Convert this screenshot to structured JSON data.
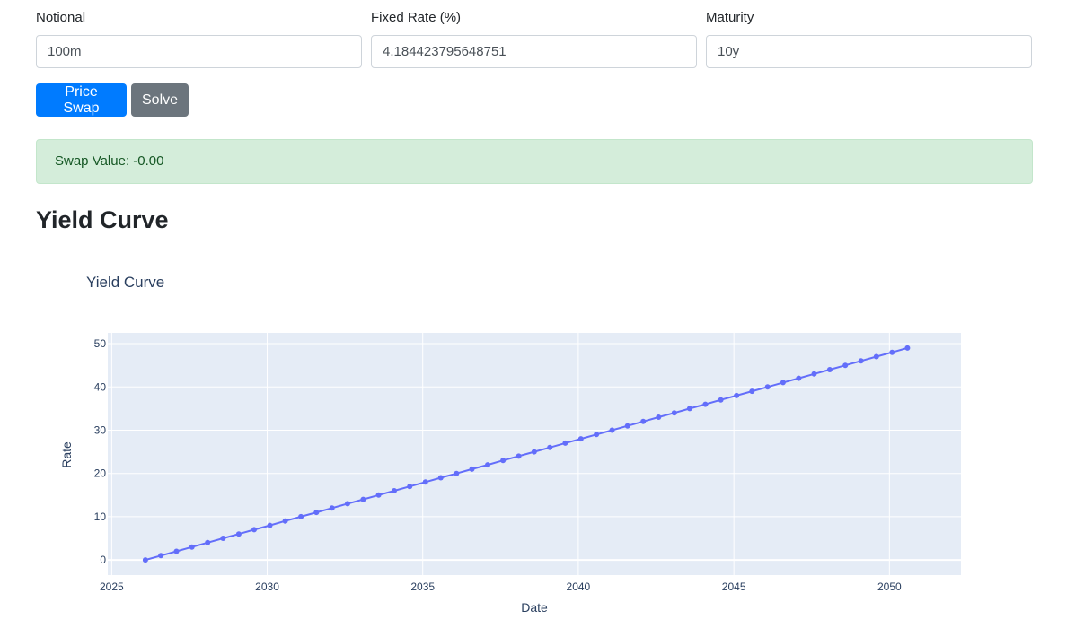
{
  "form": {
    "notional": {
      "label": "Notional",
      "value": "100m"
    },
    "fixed_rate": {
      "label": "Fixed Rate (%)",
      "value": "4.184423795648751"
    },
    "maturity": {
      "label": "Maturity",
      "value": "10y"
    }
  },
  "buttons": {
    "price_swap": "Price Swap",
    "solve": "Solve"
  },
  "result": {
    "text": "Swap Value: -0.00"
  },
  "section": {
    "title": "Yield Curve"
  },
  "colors": {
    "primary": "#007bff",
    "secondary": "#6c757d",
    "alert_bg": "#d4edda",
    "plot_bg": "#e5ecf6",
    "series": "#636efa"
  },
  "chart_data": {
    "type": "line",
    "title": "Yield Curve",
    "xlabel": "Date",
    "ylabel": "Rate",
    "xlim": [
      "2024-11-16",
      "2052-04-20"
    ],
    "ylim": [
      -3.5,
      52.5
    ],
    "x_ticks": [
      "2025",
      "2030",
      "2035",
      "2040",
      "2045",
      "2050"
    ],
    "y_ticks": [
      0,
      10,
      20,
      30,
      40,
      50
    ],
    "grid": true,
    "legend": "none",
    "series": [
      {
        "mode": "lines+markers",
        "x": [
          "2026-02-01",
          "2026-08-01",
          "2027-02-01",
          "2027-08-01",
          "2028-02-01",
          "2028-08-01",
          "2029-02-01",
          "2029-08-01",
          "2030-02-01",
          "2030-08-01",
          "2031-02-01",
          "2031-08-01",
          "2032-02-01",
          "2032-08-01",
          "2033-02-01",
          "2033-08-01",
          "2034-02-01",
          "2034-08-01",
          "2035-02-01",
          "2035-08-01",
          "2036-02-01",
          "2036-08-01",
          "2037-02-01",
          "2037-08-01",
          "2038-02-01",
          "2038-08-01",
          "2039-02-01",
          "2039-08-01",
          "2040-02-01",
          "2040-08-01",
          "2041-02-01",
          "2041-08-01",
          "2042-02-01",
          "2042-08-01",
          "2043-02-01",
          "2043-08-01",
          "2044-02-01",
          "2044-08-01",
          "2045-02-01",
          "2045-08-01",
          "2046-02-01",
          "2046-08-01",
          "2047-02-01",
          "2047-08-01",
          "2048-02-01",
          "2048-08-01",
          "2049-02-01",
          "2049-08-01",
          "2050-02-01",
          "2050-08-01"
        ],
        "y": [
          0,
          1,
          2,
          3,
          4,
          5,
          6,
          7,
          8,
          9,
          10,
          11,
          12,
          13,
          14,
          15,
          16,
          17,
          18,
          19,
          20,
          21,
          22,
          23,
          24,
          25,
          26,
          27,
          28,
          29,
          30,
          31,
          32,
          33,
          34,
          35,
          36,
          37,
          38,
          39,
          40,
          41,
          42,
          43,
          44,
          45,
          46,
          47,
          48,
          49
        ]
      }
    ]
  }
}
